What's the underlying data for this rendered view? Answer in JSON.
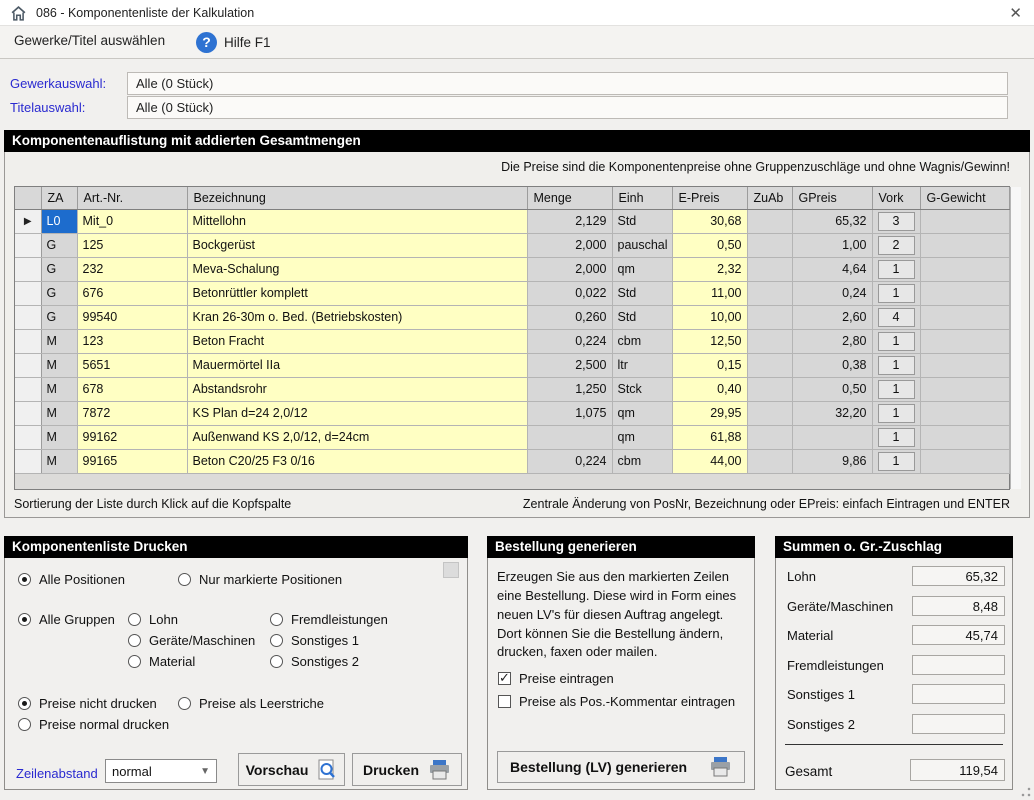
{
  "window": {
    "title": "086  -  Komponentenliste der Kalkulation",
    "close_label": "✕"
  },
  "toolbar": {
    "select_gewerke": "Gewerke/Titel auswählen",
    "help": "Hilfe F1",
    "help_glyph": "?"
  },
  "filters": {
    "gewerk_label": "Gewerkauswahl:",
    "gewerk_value": "Alle (0 Stück)",
    "titel_label": "Titelauswahl:",
    "titel_value": "Alle (0 Stück)"
  },
  "list": {
    "title": "Komponentenauflistung mit addierten Gesamtmengen",
    "note": "Die Preise sind die Komponentenpreise ohne Gruppenzuschläge und ohne Wagnis/Gewinn!",
    "columns": [
      "ZA",
      "Art.-Nr.",
      "Bezeichnung",
      "Menge",
      "Einh",
      "E-Preis",
      "ZuAb",
      "GPreis",
      "Vork",
      "G-Gewicht"
    ],
    "rows": [
      {
        "za": "L0",
        "art": "Mit_0",
        "bez": "Mittellohn",
        "menge": "2,129",
        "einh": "Std",
        "epreis": "30,68",
        "zuab": "",
        "gpreis": "65,32",
        "vork": "3",
        "ggewicht": "",
        "selected": true
      },
      {
        "za": "G",
        "art": "125",
        "bez": "Bockgerüst",
        "menge": "2,000",
        "einh": "pauschal",
        "epreis": "0,50",
        "zuab": "",
        "gpreis": "1,00",
        "vork": "2",
        "ggewicht": "",
        "selected": false
      },
      {
        "za": "G",
        "art": "232",
        "bez": "Meva-Schalung",
        "menge": "2,000",
        "einh": "qm",
        "epreis": "2,32",
        "zuab": "",
        "gpreis": "4,64",
        "vork": "1",
        "ggewicht": "",
        "selected": false
      },
      {
        "za": "G",
        "art": "676",
        "bez": "Betonrüttler komplett",
        "menge": "0,022",
        "einh": "Std",
        "epreis": "11,00",
        "zuab": "",
        "gpreis": "0,24",
        "vork": "1",
        "ggewicht": "",
        "selected": false
      },
      {
        "za": "G",
        "art": "99540",
        "bez": "Kran 26-30m o. Bed. (Betriebskosten)",
        "menge": "0,260",
        "einh": "Std",
        "epreis": "10,00",
        "zuab": "",
        "gpreis": "2,60",
        "vork": "4",
        "ggewicht": "",
        "selected": false
      },
      {
        "za": "M",
        "art": "123",
        "bez": "Beton Fracht",
        "menge": "0,224",
        "einh": "cbm",
        "epreis": "12,50",
        "zuab": "",
        "gpreis": "2,80",
        "vork": "1",
        "ggewicht": "",
        "selected": false
      },
      {
        "za": "M",
        "art": "5651",
        "bez": "Mauermörtel IIa",
        "menge": "2,500",
        "einh": "ltr",
        "epreis": "0,15",
        "zuab": "",
        "gpreis": "0,38",
        "vork": "1",
        "ggewicht": "",
        "selected": false
      },
      {
        "za": "M",
        "art": "678",
        "bez": "Abstandsrohr",
        "menge": "1,250",
        "einh": "Stck",
        "epreis": "0,40",
        "zuab": "",
        "gpreis": "0,50",
        "vork": "1",
        "ggewicht": "",
        "selected": false
      },
      {
        "za": "M",
        "art": "7872",
        "bez": "KS Plan d=24 2,0/12",
        "menge": "1,075",
        "einh": "qm",
        "epreis": "29,95",
        "zuab": "",
        "gpreis": "32,20",
        "vork": "1",
        "ggewicht": "",
        "selected": false
      },
      {
        "za": "M",
        "art": "99162",
        "bez": "Außenwand KS 2,0/12, d=24cm",
        "menge": "",
        "einh": "qm",
        "epreis": "61,88",
        "zuab": "",
        "gpreis": "",
        "vork": "1",
        "ggewicht": "",
        "selected": false
      },
      {
        "za": "M",
        "art": "99165",
        "bez": "Beton C20/25 F3 0/16",
        "menge": "0,224",
        "einh": "cbm",
        "epreis": "44,00",
        "zuab": "",
        "gpreis": "9,86",
        "vork": "1",
        "ggewicht": "",
        "selected": false
      }
    ],
    "hint_left": "Sortierung der Liste durch Klick auf die Kopfspalte",
    "hint_right": "Zentrale Änderung von PosNr, Bezeichnung oder EPreis: einfach Eintragen und ENTER"
  },
  "print": {
    "title": "Komponentenliste Drucken",
    "all_positions": "Alle Positionen",
    "marked_positions": "Nur markierte Positionen",
    "all_groups": "Alle Gruppen",
    "groups_col1": [
      "Lohn",
      "Geräte/Maschinen",
      "Material"
    ],
    "groups_col2": [
      "Fremdleistungen",
      "Sonstiges 1",
      "Sonstiges 2"
    ],
    "prices_none": "Preise nicht drucken",
    "prices_dash": "Preise als Leerstriche",
    "prices_normal": "Preise normal drucken",
    "line_spacing_label": "Zeilenabstand",
    "line_spacing_value": "normal",
    "preview_button": "Vorschau",
    "print_button": "Drucken"
  },
  "order": {
    "title": "Bestellung generieren",
    "description": "Erzeugen Sie aus den markierten Zeilen eine Bestellung. Diese wird in Form eines neuen LV's für diesen Auftrag angelegt. Dort können Sie die Bestellung ändern, drucken, faxen oder mailen.",
    "cb_prices": "Preise eintragen",
    "cb_prices_comment": "Preise als Pos.-Kommentar eintragen",
    "generate_button": "Bestellung (LV) generieren"
  },
  "sums": {
    "title": "Summen o. Gr.-Zuschlag",
    "rows": [
      {
        "label": "Lohn",
        "value": "65,32"
      },
      {
        "label": "Geräte/Maschinen",
        "value": "8,48"
      },
      {
        "label": "Material",
        "value": "45,74"
      },
      {
        "label": "Fremdleistungen",
        "value": ""
      },
      {
        "label": "Sonstiges 1",
        "value": ""
      },
      {
        "label": "Sonstiges 2",
        "value": ""
      }
    ],
    "total_label": "Gesamt",
    "total_value": "119,54"
  },
  "colors": {
    "selected_cell_blue": "#1d6ccd",
    "label_blue": "#2a2ad0",
    "cell_yellow": "#ffffc3",
    "cell_gray": "#d7d7d7",
    "section_header_bg": "#000000",
    "help_icon_blue": "#2e72d2"
  }
}
